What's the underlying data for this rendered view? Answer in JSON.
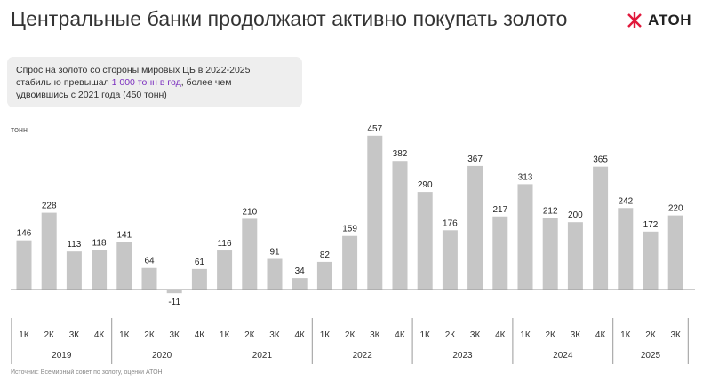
{
  "title": "Центральные банки продолжают активно покупать золото",
  "logo": {
    "text": "АТОН",
    "accent": "#e0173a"
  },
  "callout": {
    "line1": "Спрос на золото со стороны мировых ЦБ в 2022-2025",
    "line2_before": "стабильно превышал ",
    "line2_highlight": "1 000 тонн в год",
    "line2_after": ", более чем",
    "line3": "удвоившись с 2021 года (450 тонн)"
  },
  "unit_label": "тонн",
  "source": "Источник: Всемирный совет по золоту, оценки АТОН",
  "colors": {
    "bar": "#c6c6c6",
    "axis": "#999999",
    "highlight": "#7b2fbf"
  },
  "chart_data": {
    "type": "bar",
    "title": "",
    "ylabel": "тонн",
    "ylim": [
      -15,
      470
    ],
    "categories": [
      "1К",
      "2К",
      "3К",
      "4К",
      "1К",
      "2К",
      "3К",
      "4К",
      "1К",
      "2К",
      "3К",
      "4К",
      "1К",
      "2К",
      "3К",
      "4К",
      "1К",
      "2К",
      "3К",
      "4К",
      "1К",
      "2К",
      "3К",
      "4К",
      "1К",
      "2К",
      "3К"
    ],
    "years": [
      {
        "label": "2019",
        "count": 4
      },
      {
        "label": "2020",
        "count": 4
      },
      {
        "label": "2021",
        "count": 4
      },
      {
        "label": "2022",
        "count": 4
      },
      {
        "label": "2023",
        "count": 4
      },
      {
        "label": "2024",
        "count": 4
      },
      {
        "label": "2025",
        "count": 3
      }
    ],
    "values": [
      146,
      228,
      113,
      118,
      141,
      64,
      -11,
      61,
      116,
      210,
      91,
      34,
      82,
      159,
      457,
      382,
      290,
      176,
      367,
      217,
      313,
      212,
      200,
      365,
      242,
      172,
      220
    ],
    "data_labels": [
      "146",
      "228",
      "113",
      "118",
      "141",
      "64",
      "-11",
      "61",
      "116",
      "210",
      "91",
      "34",
      "82",
      "159",
      "457",
      "382",
      "290",
      "176",
      "367",
      "217",
      "313",
      "212",
      "200",
      "365",
      "242",
      "172",
      "220"
    ]
  }
}
